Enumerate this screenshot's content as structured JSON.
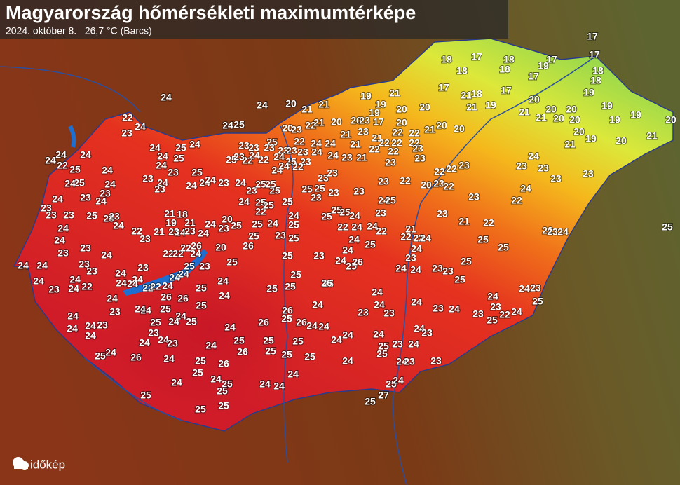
{
  "header": {
    "title": "Magyarország hőmérsékleti maximumtérképe",
    "subtitle": "2024. október 8.   26,7 °C (Barcs)"
  },
  "logo": "időkép",
  "stations": [
    17,
    17,
    18,
    17,
    18,
    17,
    18,
    18,
    19,
    18,
    17,
    18,
    19,
    21,
    17,
    21,
    18,
    17,
    19,
    19,
    19,
    21,
    20,
    20,
    19,
    19,
    20,
    21,
    20,
    20,
    21,
    20,
    20,
    19,
    19,
    20,
    21,
    20,
    19,
    21,
    20,
    21,
    20,
    21,
    24,
    24,
    24,
    25,
    20,
    23,
    22,
    21,
    20,
    20,
    23,
    17,
    20,
    20,
    21,
    20,
    21,
    23,
    21,
    22,
    22,
    22,
    22,
    22,
    21,
    22,
    22,
    23,
    24,
    24,
    22,
    25,
    23,
    23,
    23,
    23,
    23,
    23,
    24,
    24,
    23,
    21,
    23,
    23,
    23,
    25,
    22,
    24,
    24,
    22,
    24,
    22,
    25,
    23,
    24,
    22,
    24,
    23,
    24,
    24,
    24,
    22,
    25,
    24,
    24,
    24,
    25,
    24,
    25,
    24,
    23,
    25,
    25,
    24,
    24,
    23,
    24,
    23,
    24,
    23,
    23,
    23,
    24,
    25,
    23,
    23,
    24,
    24,
    23,
    23,
    24,
    24,
    24,
    23,
    23,
    24,
    23,
    24,
    24,
    22,
    24,
    24,
    24,
    23,
    24,
    22,
    22,
    24,
    24,
    24,
    23,
    24,
    24,
    24,
    24,
    23,
    24,
    23,
    21,
    18,
    19,
    21,
    24,
    24,
    20,
    22,
    21,
    23,
    23,
    24,
    23,
    23,
    22,
    22,
    22,
    26,
    20,
    24,
    25,
    23,
    25,
    26,
    25,
    25,
    25,
    24,
    23,
    25,
    25,
    24,
    22,
    24,
    25,
    23,
    25,
    25,
    25,
    25,
    25,
    25,
    25,
    25,
    25,
    25,
    24,
    23,
    23,
    23,
    23,
    23,
    23,
    22,
    20,
    23,
    22,
    22,
    22,
    23,
    23,
    23,
    24,
    23,
    24,
    23,
    23,
    22,
    23,
    21,
    22,
    22,
    23,
    24,
    25,
    24,
    25,
    23,
    24,
    24,
    22,
    22,
    21,
    22,
    22,
    24,
    24,
    23,
    24,
    24,
    23,
    23,
    25,
    25,
    25,
    25,
    25,
    24,
    24,
    24,
    25,
    26,
    25,
    25,
    23,
    25,
    26,
    25,
    25,
    24,
    24,
    25,
    26,
    26,
    25,
    25,
    24,
    25,
    24,
    25,
    24,
    24,
    23,
    24,
    24,
    24,
    24,
    23,
    24,
    23,
    24,
    23,
    24,
    24,
    25,
    26,
    24,
    25,
    24,
    24,
    26,
    25,
    26,
    25,
    25,
    25,
    25,
    26,
    25,
    26,
    24,
    24,
    24,
    24,
    24,
    23,
    24,
    24,
    23,
    24,
    23,
    24,
    23,
    24,
    23,
    22,
    24,
    25,
    24,
    23,
    25,
    24,
    23,
    24,
    25,
    23,
    24,
    25,
    24,
    23,
    23,
    24,
    25,
    26,
    24,
    24,
    25,
    25,
    25,
    24,
    24,
    24,
    25,
    24,
    27,
    25,
    25,
    25,
    25
  ]
}
